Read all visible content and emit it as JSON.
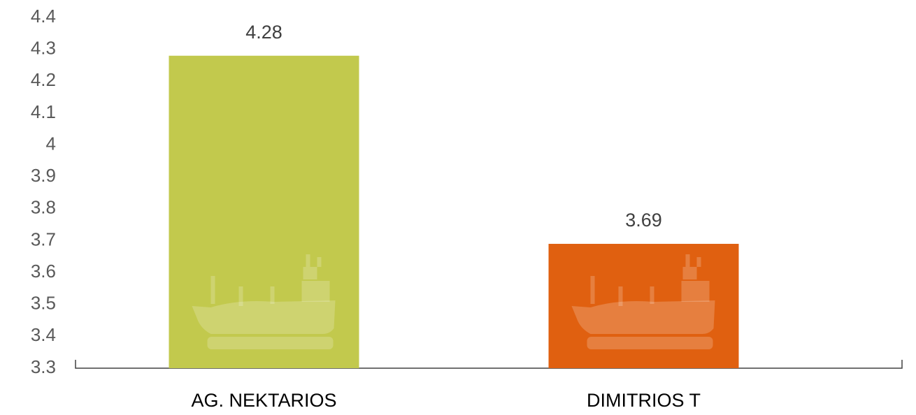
{
  "chart_data": {
    "type": "bar",
    "categories": [
      "AG. NEKTARIOS",
      "DIMITRIOS T"
    ],
    "values": [
      4.28,
      3.69
    ],
    "colors": [
      "#c2c94d",
      "#e06010"
    ],
    "ylim": [
      3.3,
      4.4
    ],
    "yticks": [
      3.3,
      3.4,
      3.5,
      3.6,
      3.7,
      3.8,
      3.9,
      4,
      4.1,
      4.2,
      4.3,
      4.4
    ],
    "grid": false
  }
}
